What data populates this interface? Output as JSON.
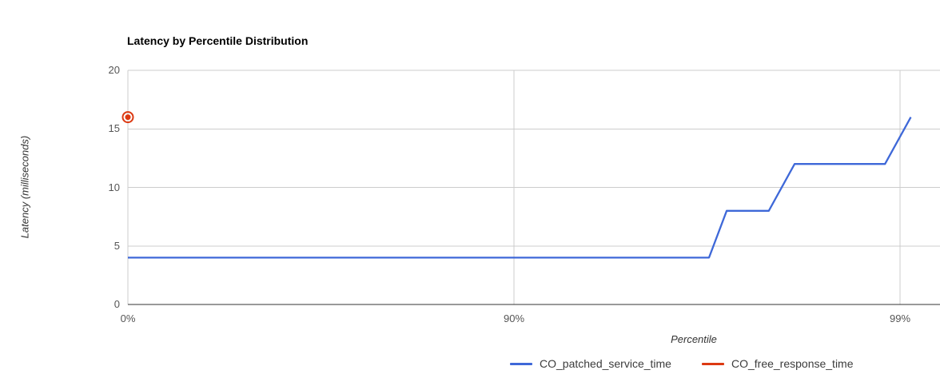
{
  "chart_data": {
    "type": "line",
    "title": "Latency by Percentile Distribution",
    "xlabel": "Percentile",
    "ylabel": "Latency (milliseconds)",
    "x_scale": "log-percentile (position proportional to -log10(1 - percentile/100))",
    "x_ticks": [
      {
        "label": "0%",
        "percentile": 0
      },
      {
        "label": "90%",
        "percentile": 90
      },
      {
        "label": "99%",
        "percentile": 99
      }
    ],
    "y_ticks": [
      0,
      5,
      10,
      15,
      20
    ],
    "ylim": [
      0,
      20
    ],
    "grid": true,
    "legend_position": "bottom",
    "colors": {
      "background": "#ffffff",
      "gridline": "#cccccc",
      "baseline": "#333333",
      "tick_label": "#555555",
      "axis_title": "#333333",
      "title": "#000000",
      "legend_text": "#3c3c3c"
    },
    "series": [
      {
        "name": "CO_patched_service_time",
        "color": "#3e68d8",
        "style": "line",
        "points": [
          [
            0,
            4
          ],
          [
            96.875,
            4
          ],
          [
            97.1875,
            8
          ],
          [
            97.8125,
            8
          ],
          [
            98.125,
            12
          ],
          [
            98.90625,
            12
          ],
          [
            99.0625,
            16
          ]
        ]
      },
      {
        "name": "CO_free_response_time",
        "color": "#dc3912",
        "style": "ring-dot-marker",
        "points": [
          [
            0,
            16
          ]
        ]
      }
    ]
  }
}
